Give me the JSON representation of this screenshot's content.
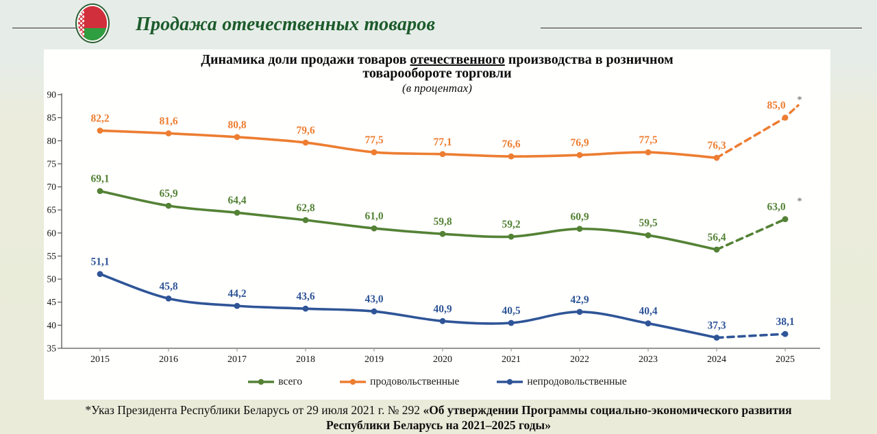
{
  "header": {
    "title": "Продажа отечественных товаров"
  },
  "chart": {
    "title_part1": "Динамика доли продажи товаров ",
    "title_underlined": "отечественного",
    "title_part2": " производства в розничном",
    "title_line2": "товарообороте торговли",
    "subtitle": "(в процентах)"
  },
  "chart_data": {
    "type": "line",
    "title": "Динамика доли продажи товаров отечественного производства в розничном товарообороте торговли",
    "subtitle": "(в процентах)",
    "x": [
      2015,
      2016,
      2017,
      2018,
      2019,
      2020,
      2021,
      2022,
      2023,
      2024,
      2025
    ],
    "ylim": [
      35,
      90
    ],
    "ytick_step": 5,
    "grid": false,
    "legend_position": "bottom",
    "last_point_style": "dashed-forecast",
    "series": [
      {
        "name": "всего",
        "color": "#548235",
        "values": [
          69.1,
          65.9,
          64.4,
          62.8,
          61.0,
          59.8,
          59.2,
          60.9,
          59.5,
          56.4,
          63.0
        ],
        "forecast_last": true,
        "asterisk_last": true,
        "extra_dash": false
      },
      {
        "name": "продовольственные",
        "color": "#ED7D31",
        "values": [
          82.2,
          81.6,
          80.8,
          79.6,
          77.5,
          77.1,
          76.6,
          76.9,
          77.5,
          76.3,
          85.0
        ],
        "forecast_last": true,
        "asterisk_last": true,
        "extra_dash": true
      },
      {
        "name": "непродовольственные",
        "color": "#2F5597",
        "values": [
          51.1,
          45.8,
          44.2,
          43.6,
          43.0,
          40.9,
          40.5,
          42.9,
          40.4,
          37.3,
          38.1
        ],
        "forecast_last": true,
        "asterisk_last": false,
        "extra_dash": false
      }
    ]
  },
  "footnote": {
    "line1_regular": "*Указ Президента Республики Беларусь от 29 июля 2021 г. № 292 ",
    "line1_bold": "«Об утверждении Программы социально-экономического развития",
    "line2_bold": "Республики Беларусь на 2021–2025 годы»"
  },
  "colors": {
    "header_title": "#1c5b2b",
    "total": "#548235",
    "food": "#ED7D31",
    "nonfood": "#2F5597",
    "axis": "#555555",
    "asterisk": "#7f7f7f"
  }
}
